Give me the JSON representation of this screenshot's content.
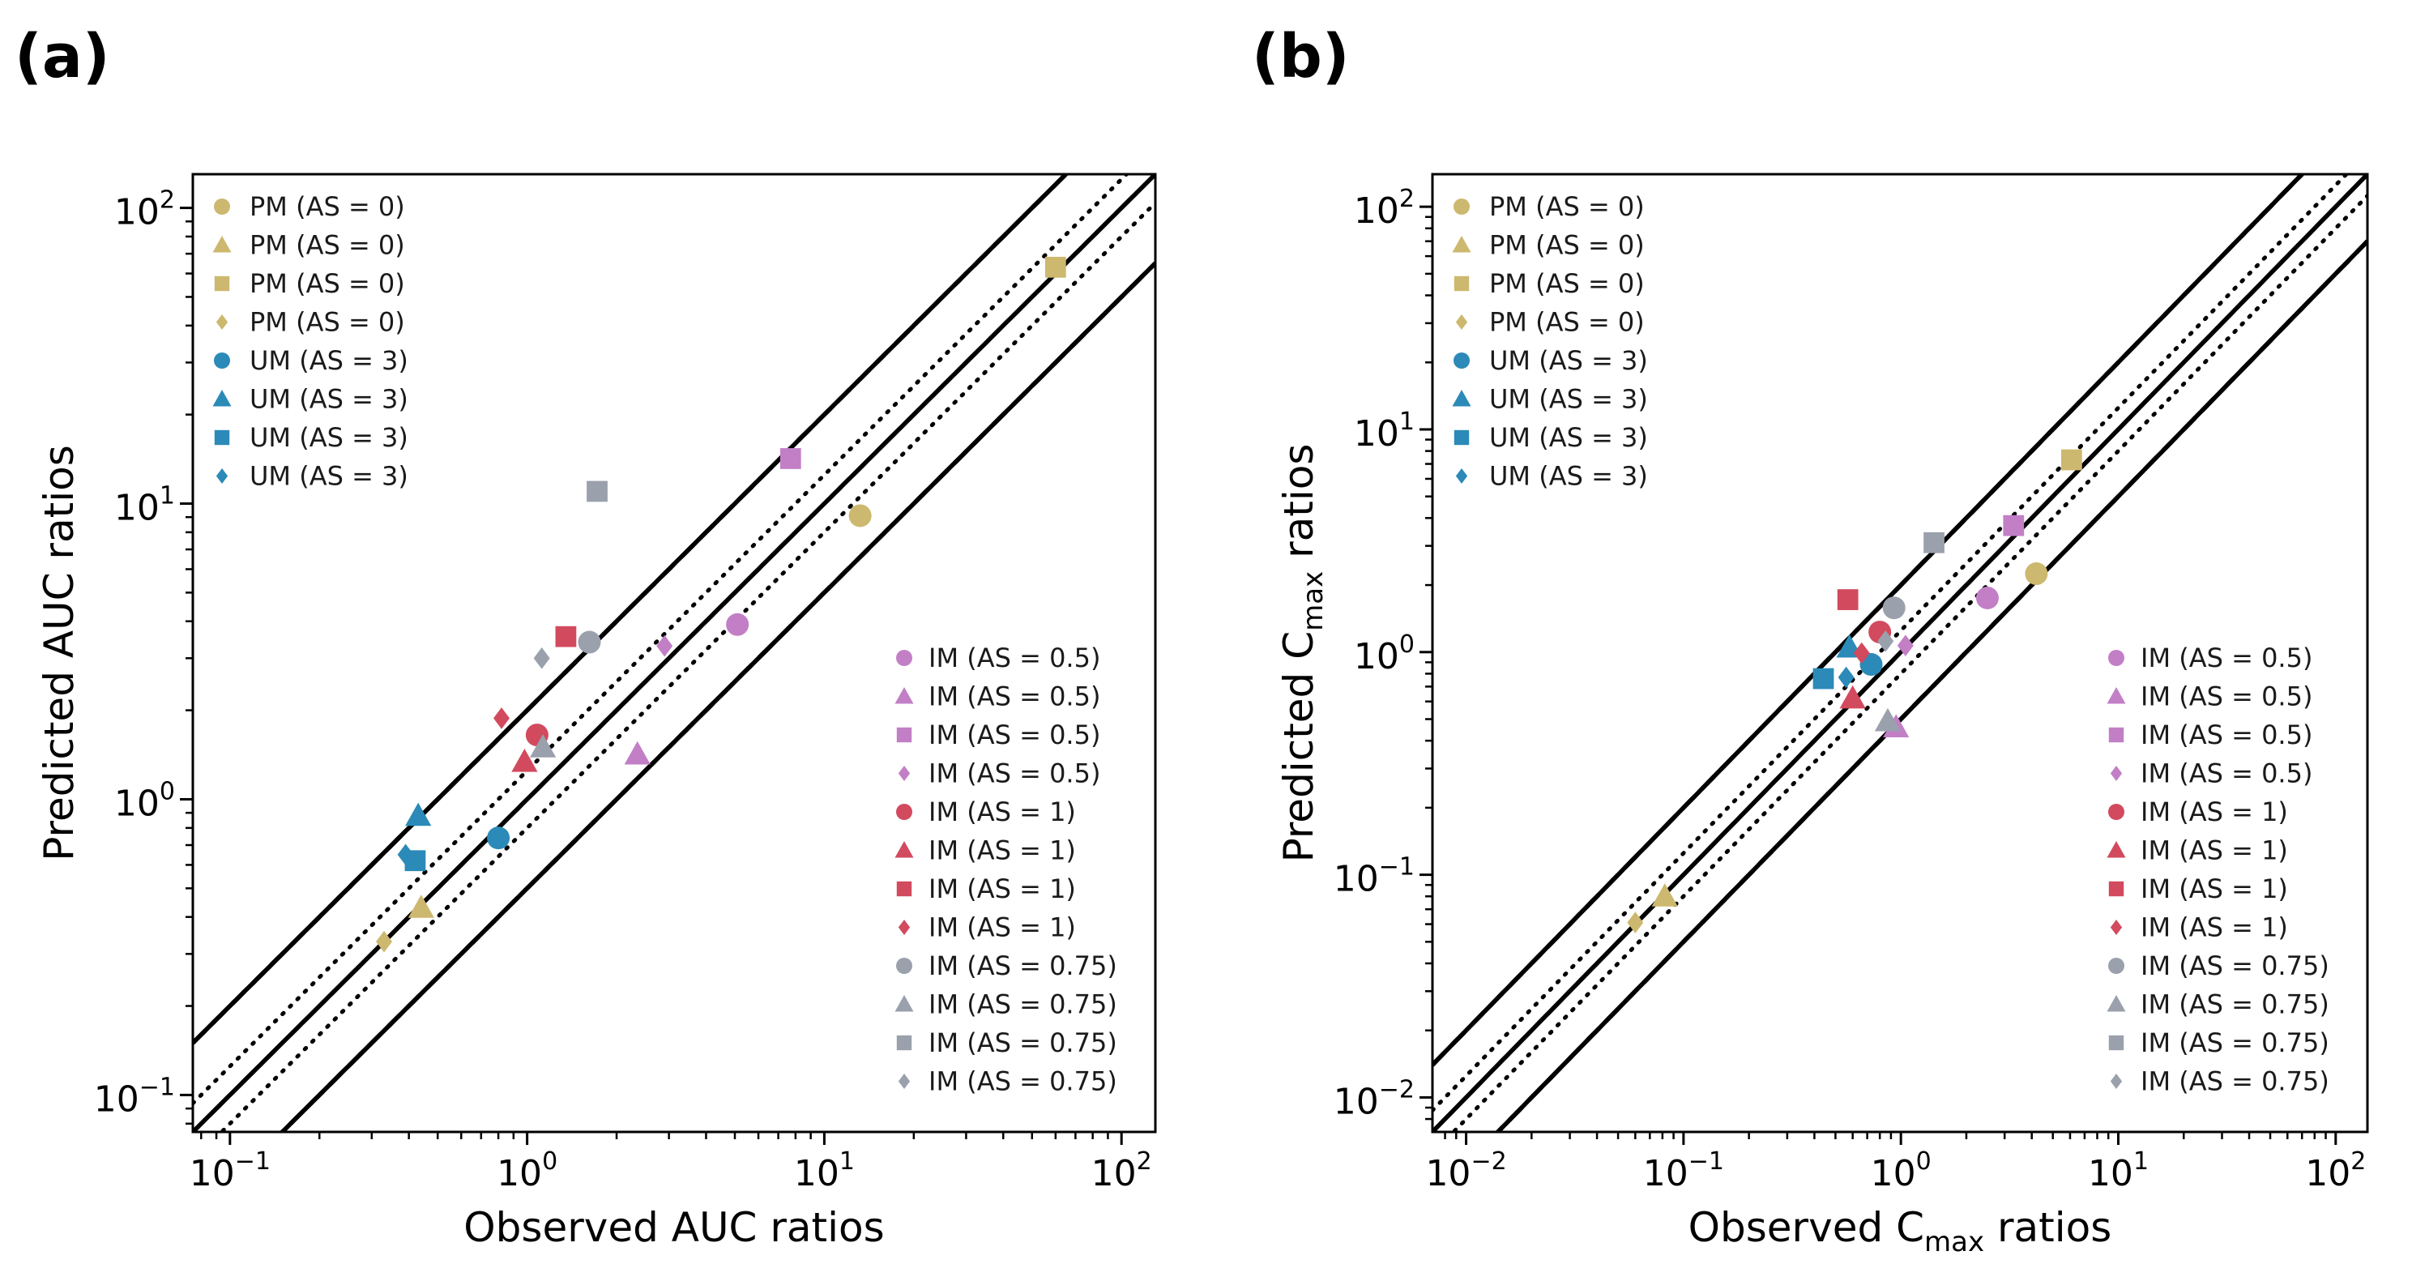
{
  "colors": {
    "PM": "#cdb86f",
    "UM": "#2b8ab8",
    "IM_0_5": "#c27fc6",
    "IM_1": "#d24a5e",
    "IM_0_75": "#9aa1ad"
  },
  "chart_data": [
    {
      "panel": "(a)",
      "type": "scatter",
      "xlabel": "Observed AUC ratios",
      "ylabel": "Predicted AUC ratios",
      "xscale": "log",
      "yscale": "log",
      "xlim": [
        0.075,
        130
      ],
      "ylim": [
        0.075,
        130
      ],
      "xticks": [
        {
          "base": "10",
          "exp": "−1",
          "value": 0.1
        },
        {
          "base": "10",
          "exp": "0",
          "value": 1
        },
        {
          "base": "10",
          "exp": "1",
          "value": 10
        },
        {
          "base": "10",
          "exp": "2",
          "value": 100
        }
      ],
      "yticks": [
        {
          "base": "10",
          "exp": "−1",
          "value": 0.1
        },
        {
          "base": "10",
          "exp": "0",
          "value": 1
        },
        {
          "base": "10",
          "exp": "1",
          "value": 10
        },
        {
          "base": "10",
          "exp": "2",
          "value": 100
        }
      ],
      "reference_lines": [
        {
          "style": "solid",
          "kind": "unity",
          "factor": 1
        },
        {
          "style": "dotted",
          "kind": "fold",
          "factor": 1.25
        },
        {
          "style": "dotted",
          "kind": "fold",
          "factor": 0.8
        },
        {
          "style": "dashed",
          "kind": "fold",
          "factor": 2
        },
        {
          "style": "dashed",
          "kind": "fold",
          "factor": 0.5
        },
        {
          "style": "solid",
          "kind": "guest_limit_upper",
          "delta": 2
        },
        {
          "style": "solid",
          "kind": "guest_limit_lower",
          "delta": 2
        }
      ],
      "legend_upper": [
        {
          "label": "PM (AS = 0)",
          "color": "PM",
          "marker": "circle"
        },
        {
          "label": "PM (AS = 0)",
          "color": "PM",
          "marker": "triangle"
        },
        {
          "label": "PM (AS = 0)",
          "color": "PM",
          "marker": "square"
        },
        {
          "label": "PM (AS = 0)",
          "color": "PM",
          "marker": "diamond"
        },
        {
          "label": "UM (AS = 3)",
          "color": "UM",
          "marker": "circle"
        },
        {
          "label": "UM (AS = 3)",
          "color": "UM",
          "marker": "triangle"
        },
        {
          "label": "UM (AS = 3)",
          "color": "UM",
          "marker": "square"
        },
        {
          "label": "UM (AS = 3)",
          "color": "UM",
          "marker": "diamond"
        }
      ],
      "legend_lower": [
        {
          "label": "IM (AS = 0.5)",
          "color": "IM_0_5",
          "marker": "circle"
        },
        {
          "label": "IM (AS = 0.5)",
          "color": "IM_0_5",
          "marker": "triangle"
        },
        {
          "label": "IM (AS = 0.5)",
          "color": "IM_0_5",
          "marker": "square"
        },
        {
          "label": "IM (AS = 0.5)",
          "color": "IM_0_5",
          "marker": "diamond"
        },
        {
          "label": "IM (AS = 1)",
          "color": "IM_1",
          "marker": "circle"
        },
        {
          "label": "IM (AS = 1)",
          "color": "IM_1",
          "marker": "triangle"
        },
        {
          "label": "IM (AS = 1)",
          "color": "IM_1",
          "marker": "square"
        },
        {
          "label": "IM (AS = 1)",
          "color": "IM_1",
          "marker": "diamond"
        },
        {
          "label": "IM (AS = 0.75)",
          "color": "IM_0_75",
          "marker": "circle"
        },
        {
          "label": "IM (AS = 0.75)",
          "color": "IM_0_75",
          "marker": "triangle"
        },
        {
          "label": "IM (AS = 0.75)",
          "color": "IM_0_75",
          "marker": "square"
        },
        {
          "label": "IM (AS = 0.75)",
          "color": "IM_0_75",
          "marker": "diamond"
        }
      ],
      "points": [
        {
          "x": 13.2,
          "y": 9.1,
          "color": "PM",
          "marker": "circle"
        },
        {
          "x": 0.44,
          "y": 0.43,
          "color": "PM",
          "marker": "triangle"
        },
        {
          "x": 60,
          "y": 63,
          "color": "PM",
          "marker": "square"
        },
        {
          "x": 0.33,
          "y": 0.33,
          "color": "PM",
          "marker": "diamond"
        },
        {
          "x": 0.8,
          "y": 0.74,
          "color": "UM",
          "marker": "circle"
        },
        {
          "x": 0.43,
          "y": 0.88,
          "color": "UM",
          "marker": "triangle"
        },
        {
          "x": 0.42,
          "y": 0.62,
          "color": "UM",
          "marker": "square"
        },
        {
          "x": 0.39,
          "y": 0.65,
          "color": "UM",
          "marker": "diamond"
        },
        {
          "x": 5.1,
          "y": 3.9,
          "color": "IM_0_5",
          "marker": "circle"
        },
        {
          "x": 2.35,
          "y": 1.42,
          "color": "IM_0_5",
          "marker": "triangle"
        },
        {
          "x": 7.7,
          "y": 14.2,
          "color": "IM_0_5",
          "marker": "square"
        },
        {
          "x": 2.9,
          "y": 3.3,
          "color": "IM_0_5",
          "marker": "diamond"
        },
        {
          "x": 1.08,
          "y": 1.65,
          "color": "IM_1",
          "marker": "circle"
        },
        {
          "x": 0.98,
          "y": 1.34,
          "color": "IM_1",
          "marker": "triangle"
        },
        {
          "x": 1.35,
          "y": 3.55,
          "color": "IM_1",
          "marker": "square"
        },
        {
          "x": 0.82,
          "y": 1.88,
          "color": "IM_1",
          "marker": "diamond"
        },
        {
          "x": 1.62,
          "y": 3.4,
          "color": "IM_0_75",
          "marker": "circle"
        },
        {
          "x": 1.13,
          "y": 1.5,
          "color": "IM_0_75",
          "marker": "triangle"
        },
        {
          "x": 1.72,
          "y": 11,
          "color": "IM_0_75",
          "marker": "square"
        },
        {
          "x": 1.12,
          "y": 3.0,
          "color": "IM_0_75",
          "marker": "diamond"
        }
      ]
    },
    {
      "panel": "(b)",
      "type": "scatter",
      "xlabel": "Observed C",
      "xlabel_sub": "max",
      "xlabel_suffix": " ratios",
      "ylabel": "Predicted C",
      "ylabel_sub": "max",
      "ylabel_suffix": " ratios",
      "xscale": "log",
      "yscale": "log",
      "xlim": [
        0.007,
        140
      ],
      "ylim": [
        0.007,
        140
      ],
      "xticks": [
        {
          "base": "10",
          "exp": "−2",
          "value": 0.01
        },
        {
          "base": "10",
          "exp": "−1",
          "value": 0.1
        },
        {
          "base": "10",
          "exp": "0",
          "value": 1
        },
        {
          "base": "10",
          "exp": "1",
          "value": 10
        },
        {
          "base": "10",
          "exp": "2",
          "value": 100
        }
      ],
      "yticks": [
        {
          "base": "10",
          "exp": "−2",
          "value": 0.01
        },
        {
          "base": "10",
          "exp": "−1",
          "value": 0.1
        },
        {
          "base": "10",
          "exp": "0",
          "value": 1
        },
        {
          "base": "10",
          "exp": "1",
          "value": 10
        },
        {
          "base": "10",
          "exp": "2",
          "value": 100
        }
      ],
      "reference_lines": [
        {
          "style": "solid",
          "kind": "unity",
          "factor": 1
        },
        {
          "style": "dotted",
          "kind": "fold",
          "factor": 1.25
        },
        {
          "style": "dotted",
          "kind": "fold",
          "factor": 0.8
        },
        {
          "style": "dashed",
          "kind": "fold",
          "factor": 2
        },
        {
          "style": "dashed",
          "kind": "fold",
          "factor": 0.5
        },
        {
          "style": "solid",
          "kind": "guest_limit_upper",
          "delta": 2
        },
        {
          "style": "solid",
          "kind": "guest_limit_lower",
          "delta": 2
        }
      ],
      "legend_upper": [
        {
          "label": "PM (AS = 0)",
          "color": "PM",
          "marker": "circle"
        },
        {
          "label": "PM (AS = 0)",
          "color": "PM",
          "marker": "triangle"
        },
        {
          "label": "PM (AS = 0)",
          "color": "PM",
          "marker": "square"
        },
        {
          "label": "PM (AS = 0)",
          "color": "PM",
          "marker": "diamond"
        },
        {
          "label": "UM (AS = 3)",
          "color": "UM",
          "marker": "circle"
        },
        {
          "label": "UM (AS = 3)",
          "color": "UM",
          "marker": "triangle"
        },
        {
          "label": "UM (AS = 3)",
          "color": "UM",
          "marker": "square"
        },
        {
          "label": "UM (AS = 3)",
          "color": "UM",
          "marker": "diamond"
        }
      ],
      "legend_lower": [
        {
          "label": "IM (AS = 0.5)",
          "color": "IM_0_5",
          "marker": "circle"
        },
        {
          "label": "IM (AS = 0.5)",
          "color": "IM_0_5",
          "marker": "triangle"
        },
        {
          "label": "IM (AS = 0.5)",
          "color": "IM_0_5",
          "marker": "square"
        },
        {
          "label": "IM (AS = 0.5)",
          "color": "IM_0_5",
          "marker": "diamond"
        },
        {
          "label": "IM (AS = 1)",
          "color": "IM_1",
          "marker": "circle"
        },
        {
          "label": "IM (AS = 1)",
          "color": "IM_1",
          "marker": "triangle"
        },
        {
          "label": "IM (AS = 1)",
          "color": "IM_1",
          "marker": "square"
        },
        {
          "label": "IM (AS = 1)",
          "color": "IM_1",
          "marker": "diamond"
        },
        {
          "label": "IM (AS = 0.75)",
          "color": "IM_0_75",
          "marker": "circle"
        },
        {
          "label": "IM (AS = 0.75)",
          "color": "IM_0_75",
          "marker": "triangle"
        },
        {
          "label": "IM (AS = 0.75)",
          "color": "IM_0_75",
          "marker": "square"
        },
        {
          "label": "IM (AS = 0.75)",
          "color": "IM_0_75",
          "marker": "diamond"
        }
      ],
      "points": [
        {
          "x": 4.2,
          "y": 2.25,
          "color": "PM",
          "marker": "circle"
        },
        {
          "x": 0.082,
          "y": 0.08,
          "color": "PM",
          "marker": "triangle"
        },
        {
          "x": 6.1,
          "y": 7.3,
          "color": "PM",
          "marker": "square"
        },
        {
          "x": 0.06,
          "y": 0.061,
          "color": "PM",
          "marker": "diamond"
        },
        {
          "x": 0.73,
          "y": 0.88,
          "color": "UM",
          "marker": "circle"
        },
        {
          "x": 0.58,
          "y": 1.05,
          "color": "UM",
          "marker": "triangle"
        },
        {
          "x": 0.44,
          "y": 0.76,
          "color": "UM",
          "marker": "square"
        },
        {
          "x": 0.56,
          "y": 0.77,
          "color": "UM",
          "marker": "diamond"
        },
        {
          "x": 2.5,
          "y": 1.75,
          "color": "IM_0_5",
          "marker": "circle"
        },
        {
          "x": 0.95,
          "y": 0.46,
          "color": "IM_0_5",
          "marker": "triangle"
        },
        {
          "x": 3.3,
          "y": 3.7,
          "color": "IM_0_5",
          "marker": "square"
        },
        {
          "x": 1.05,
          "y": 1.07,
          "color": "IM_0_5",
          "marker": "diamond"
        },
        {
          "x": 0.8,
          "y": 1.23,
          "color": "IM_1",
          "marker": "circle"
        },
        {
          "x": 0.6,
          "y": 0.62,
          "color": "IM_1",
          "marker": "triangle"
        },
        {
          "x": 0.57,
          "y": 1.72,
          "color": "IM_1",
          "marker": "square"
        },
        {
          "x": 0.66,
          "y": 0.99,
          "color": "IM_1",
          "marker": "diamond"
        },
        {
          "x": 0.93,
          "y": 1.58,
          "color": "IM_0_75",
          "marker": "circle"
        },
        {
          "x": 0.87,
          "y": 0.49,
          "color": "IM_0_75",
          "marker": "triangle"
        },
        {
          "x": 1.42,
          "y": 3.1,
          "color": "IM_0_75",
          "marker": "square"
        },
        {
          "x": 0.85,
          "y": 1.12,
          "color": "IM_0_75",
          "marker": "diamond"
        }
      ]
    }
  ]
}
